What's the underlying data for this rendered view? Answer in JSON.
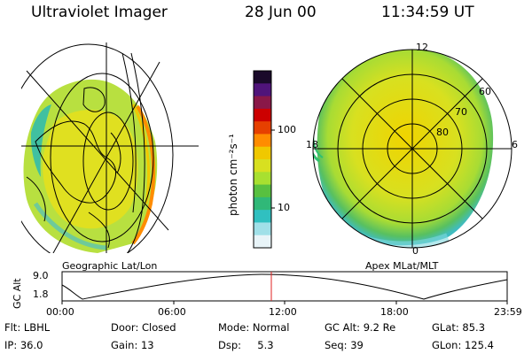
{
  "header": {
    "title": "Ultraviolet Imager",
    "date": "28 Jun 00",
    "time": "11:34:59 UT"
  },
  "colorbar": {
    "label": "photon cm⁻²s⁻¹",
    "ticks": [
      "100",
      "10"
    ],
    "colors": [
      "#1a0a2a",
      "#50147a",
      "#8a1848",
      "#cc0000",
      "#e64000",
      "#ff8c00",
      "#f0c800",
      "#d8e020",
      "#a8e030",
      "#58c040",
      "#30b878",
      "#30c0c0",
      "#a0e0e8",
      "#e8f4f8"
    ]
  },
  "geographic_map": {
    "caption": "Geographic Lat/Lon"
  },
  "polar_map": {
    "caption": "Apex MLat/MLT",
    "lat_labels": [
      "60",
      "70",
      "80"
    ],
    "mlt_labels": {
      "top": "12",
      "left": "18",
      "right": "6",
      "bottom": "0"
    }
  },
  "altitude_plot": {
    "ylabel": "GC Alt",
    "yticks": [
      "9.0",
      "1.8"
    ],
    "xticks": [
      "00:00",
      "06:00",
      "12:00",
      "18:00",
      "23:59"
    ]
  },
  "info": {
    "row1": [
      "Flt: LBHL",
      "Door: Closed",
      "Mode: Normal",
      "GC Alt: 9.2 Re",
      "GLat: 85.3"
    ],
    "row2": [
      "IP: 36.0",
      "Gain: 13",
      "Dsp:     5.3",
      "Seq: 39",
      "GLon: 125.4"
    ]
  }
}
